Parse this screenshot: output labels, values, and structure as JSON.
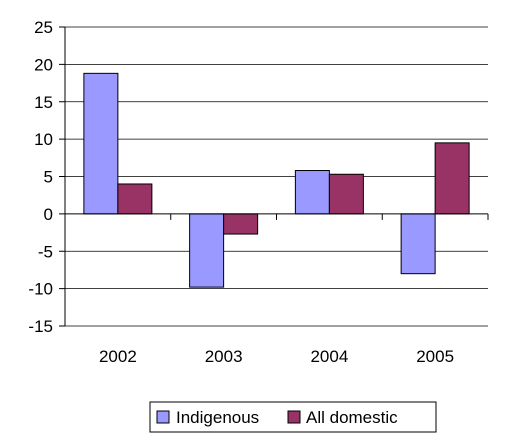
{
  "chart_data": {
    "type": "bar",
    "categories": [
      "2002",
      "2003",
      "2004",
      "2005"
    ],
    "series": [
      {
        "name": "Indigenous",
        "values": [
          18.8,
          -9.8,
          5.8,
          -8.0
        ],
        "color": "#9999ff"
      },
      {
        "name": "All domestic",
        "values": [
          4.0,
          -2.7,
          5.3,
          9.5
        ],
        "color": "#993366"
      }
    ],
    "yticks": [
      25,
      20,
      15,
      10,
      5,
      0,
      -5,
      -10,
      -15
    ],
    "ylim": [
      -15,
      25
    ],
    "grid": true,
    "legend_position": "bottom-center",
    "title": "",
    "xlabel": "",
    "ylabel": ""
  }
}
